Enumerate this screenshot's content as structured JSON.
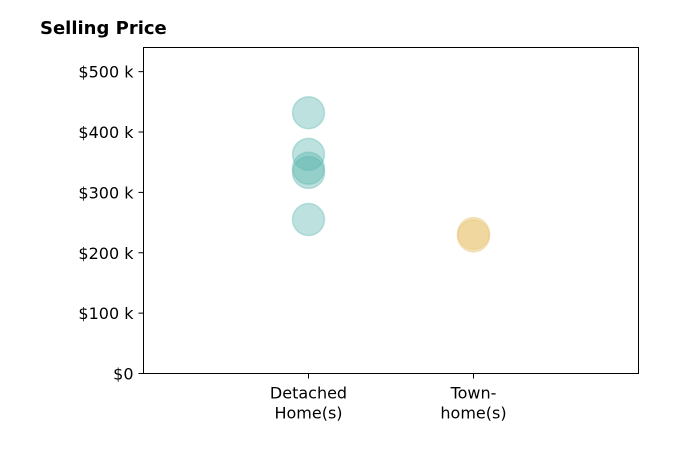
{
  "chart_data": {
    "type": "scatter",
    "title": "Selling Price",
    "xlabel": "",
    "ylabel": "",
    "categories": [
      [
        "Detached",
        "Home(s)"
      ],
      [
        "Town-",
        "home(s)"
      ]
    ],
    "xlim": [
      -1,
      2
    ],
    "ylim": [
      0,
      540000
    ],
    "yticks": [
      {
        "value": 0,
        "label": "$0"
      },
      {
        "value": 100000,
        "label": "$100 k"
      },
      {
        "value": 200000,
        "label": "$200 k"
      },
      {
        "value": 300000,
        "label": "$300 k"
      },
      {
        "value": 400000,
        "label": "$400 k"
      },
      {
        "value": 500000,
        "label": "$500 k"
      }
    ],
    "grid": false,
    "legend": "none",
    "series": [
      {
        "category_index": 0,
        "color": "#5ab4ac",
        "values": [
          432000,
          363000,
          340000,
          333000,
          255000
        ]
      },
      {
        "category_index": 1,
        "color": "#e6c06a",
        "values": [
          232000,
          228000
        ]
      }
    ]
  }
}
